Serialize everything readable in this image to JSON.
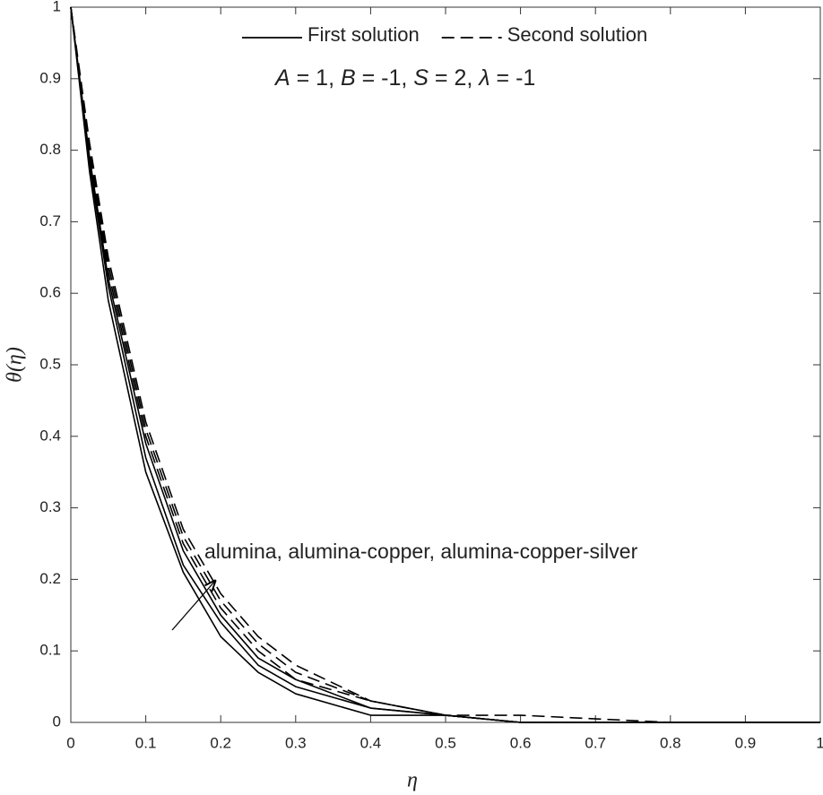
{
  "chart_data": {
    "type": "line",
    "xlabel": "η",
    "ylabel": "θ(η)",
    "x": [
      0,
      0.025,
      0.05,
      0.1,
      0.15,
      0.2,
      0.25,
      0.3,
      0.4,
      0.5,
      0.6,
      0.8,
      1.0
    ],
    "series": [
      {
        "name": "First solution",
        "color": "#000000",
        "dash": "solid",
        "values": [
          1,
          0.77,
          0.59,
          0.35,
          0.21,
          0.12,
          0.07,
          0.04,
          0.01,
          0.01,
          0,
          0,
          0
        ]
      },
      {
        "name": "First solution",
        "color": "#000000",
        "dash": "solid",
        "values": [
          1,
          0.78,
          0.61,
          0.37,
          0.22,
          0.14,
          0.08,
          0.05,
          0.02,
          0.01,
          0,
          0,
          0
        ]
      },
      {
        "name": "First solution",
        "color": "#000000",
        "dash": "solid",
        "values": [
          1,
          0.79,
          0.62,
          0.39,
          0.24,
          0.15,
          0.09,
          0.06,
          0.02,
          0.01,
          0,
          0,
          0
        ]
      },
      {
        "name": "Second solution",
        "color": "#000000",
        "dash": "dashed",
        "values": [
          1,
          0.79,
          0.63,
          0.4,
          0.25,
          0.16,
          0.1,
          0.06,
          0.03,
          0.01,
          0,
          0,
          0
        ]
      },
      {
        "name": "Second solution",
        "color": "#000000",
        "dash": "dashed",
        "values": [
          1,
          0.8,
          0.64,
          0.41,
          0.26,
          0.17,
          0.11,
          0.07,
          0.03,
          0.01,
          0,
          0,
          0
        ]
      },
      {
        "name": "Second solution",
        "color": "#000000",
        "dash": "dashed",
        "values": [
          1,
          0.81,
          0.65,
          0.42,
          0.27,
          0.18,
          0.12,
          0.08,
          0.03,
          0.01,
          0.01,
          0,
          0
        ]
      }
    ],
    "xlim": [
      0,
      1
    ],
    "ylim": [
      0,
      1
    ],
    "xticks": [
      0,
      0.1,
      0.2,
      0.3,
      0.4,
      0.5,
      0.6,
      0.7,
      0.8,
      0.9,
      1
    ],
    "yticks": [
      0,
      0.1,
      0.2,
      0.3,
      0.4,
      0.5,
      0.6,
      0.7,
      0.8,
      0.9,
      1
    ],
    "grid": false,
    "legend": "top",
    "parameters": [
      {
        "text": "A",
        "italic": true
      },
      {
        "text": " = 1,  "
      },
      {
        "text": "B",
        "italic": true
      },
      {
        "text": " = -1,  "
      },
      {
        "text": "S",
        "italic": true
      },
      {
        "text": " = 2,  "
      },
      {
        "text": "λ",
        "italic": true
      },
      {
        "text": " = -1"
      }
    ],
    "annotation": "alumina, alumina-copper, alumina-copper-silver"
  }
}
